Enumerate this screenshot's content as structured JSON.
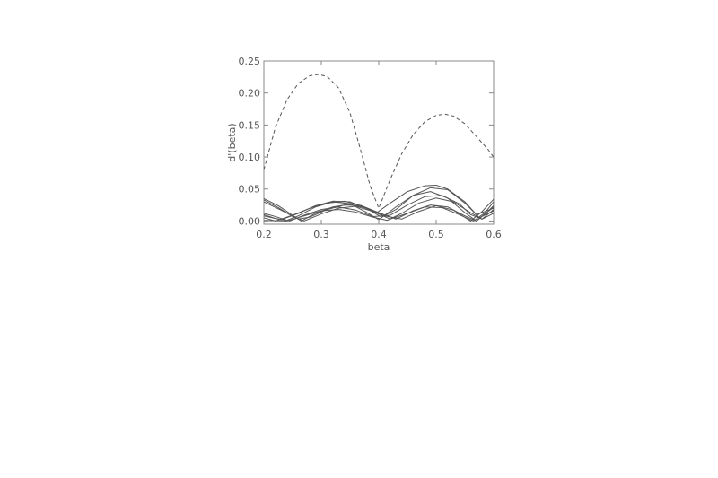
{
  "chart_data": {
    "type": "line",
    "title": "",
    "xlabel": "beta",
    "ylabel": "d'(beta)",
    "xlim": [
      0.2,
      0.6
    ],
    "ylim": [
      -0.005,
      0.25
    ],
    "xticks": [
      0.2,
      0.3,
      0.4,
      0.5,
      0.6
    ],
    "xtick_labels": [
      "0.2",
      "0.3",
      "0.4",
      "0.5",
      "0.6"
    ],
    "yticks": [
      0.0,
      0.05,
      0.1,
      0.15,
      0.2,
      0.25
    ],
    "ytick_labels": [
      "0.00",
      "0.05",
      "0.10",
      "0.15",
      "0.20",
      "0.25"
    ],
    "grid": false,
    "legend": "none",
    "axis_color": "#888888",
    "line_color": "#555555",
    "series": [
      {
        "style": "dashed",
        "x": [
          0.2,
          0.22,
          0.24,
          0.26,
          0.28,
          0.295,
          0.31,
          0.33,
          0.35,
          0.37,
          0.385,
          0.4,
          0.42,
          0.44,
          0.46,
          0.48,
          0.5,
          0.515,
          0.53,
          0.55,
          0.57,
          0.59,
          0.6
        ],
        "y": [
          0.08,
          0.146,
          0.189,
          0.215,
          0.227,
          0.229,
          0.226,
          0.208,
          0.169,
          0.106,
          0.055,
          0.02,
          0.065,
          0.105,
          0.135,
          0.155,
          0.165,
          0.167,
          0.164,
          0.152,
          0.132,
          0.112,
          0.1
        ]
      },
      {
        "style": "solid",
        "x": [
          0.2,
          0.225,
          0.25,
          0.265,
          0.29,
          0.32,
          0.35,
          0.38,
          0.41,
          0.44,
          0.47,
          0.5,
          0.53,
          0.56,
          0.58,
          0.6
        ],
        "y": [
          0.035,
          0.024,
          0.009,
          0.0,
          0.012,
          0.022,
          0.026,
          0.02,
          0.008,
          0.003,
          0.015,
          0.024,
          0.017,
          0.0,
          0.015,
          0.034
        ]
      },
      {
        "style": "solid",
        "x": [
          0.2,
          0.225,
          0.25,
          0.27,
          0.3,
          0.33,
          0.36,
          0.39,
          0.42,
          0.45,
          0.48,
          0.51,
          0.54,
          0.565,
          0.585,
          0.6
        ],
        "y": [
          0.033,
          0.021,
          0.007,
          0.0,
          0.011,
          0.02,
          0.023,
          0.015,
          0.003,
          0.012,
          0.022,
          0.021,
          0.01,
          0.0,
          0.013,
          0.03
        ]
      },
      {
        "style": "solid",
        "x": [
          0.2,
          0.23,
          0.26,
          0.28,
          0.31,
          0.34,
          0.37,
          0.4,
          0.43,
          0.46,
          0.49,
          0.52,
          0.55,
          0.57,
          0.59,
          0.6
        ],
        "y": [
          0.03,
          0.017,
          0.003,
          0.006,
          0.018,
          0.025,
          0.024,
          0.013,
          0.003,
          0.016,
          0.025,
          0.022,
          0.008,
          0.0,
          0.015,
          0.024
        ]
      },
      {
        "style": "solid",
        "x": [
          0.2,
          0.22,
          0.24,
          0.26,
          0.29,
          0.32,
          0.35,
          0.38,
          0.4,
          0.43,
          0.46,
          0.49,
          0.52,
          0.55,
          0.57,
          0.6
        ],
        "y": [
          0.012,
          0.007,
          0.001,
          0.008,
          0.022,
          0.03,
          0.027,
          0.013,
          0.002,
          0.022,
          0.04,
          0.046,
          0.036,
          0.013,
          0.0,
          0.022
        ]
      },
      {
        "style": "solid",
        "x": [
          0.2,
          0.23,
          0.26,
          0.29,
          0.32,
          0.35,
          0.38,
          0.405,
          0.43,
          0.46,
          0.49,
          0.52,
          0.55,
          0.57,
          0.6
        ],
        "y": [
          0.008,
          0.002,
          0.012,
          0.024,
          0.031,
          0.03,
          0.019,
          0.006,
          0.018,
          0.04,
          0.052,
          0.049,
          0.028,
          0.01,
          0.02
        ]
      },
      {
        "style": "solid",
        "x": [
          0.2,
          0.22,
          0.25,
          0.28,
          0.31,
          0.34,
          0.37,
          0.395,
          0.42,
          0.45,
          0.48,
          0.5,
          0.52,
          0.55,
          0.575,
          0.6
        ],
        "y": [
          0.005,
          0.0,
          0.009,
          0.02,
          0.028,
          0.031,
          0.024,
          0.012,
          0.028,
          0.046,
          0.055,
          0.056,
          0.05,
          0.03,
          0.005,
          0.016
        ]
      },
      {
        "style": "solid",
        "x": [
          0.2,
          0.24,
          0.27,
          0.3,
          0.33,
          0.36,
          0.39,
          0.415,
          0.44,
          0.47,
          0.5,
          0.53,
          0.56,
          0.58,
          0.6
        ],
        "y": [
          0.001,
          0.0,
          0.008,
          0.016,
          0.018,
          0.014,
          0.006,
          0.001,
          0.012,
          0.028,
          0.036,
          0.03,
          0.013,
          0.003,
          0.012
        ]
      },
      {
        "style": "solid",
        "x": [
          0.2,
          0.22,
          0.245,
          0.27,
          0.3,
          0.33,
          0.36,
          0.39,
          0.42,
          0.45,
          0.48,
          0.51,
          0.54,
          0.56,
          0.58,
          0.6
        ],
        "y": [
          0.01,
          0.004,
          0.0,
          0.009,
          0.018,
          0.022,
          0.017,
          0.007,
          0.009,
          0.025,
          0.038,
          0.04,
          0.027,
          0.01,
          0.003,
          0.018
        ]
      }
    ]
  }
}
